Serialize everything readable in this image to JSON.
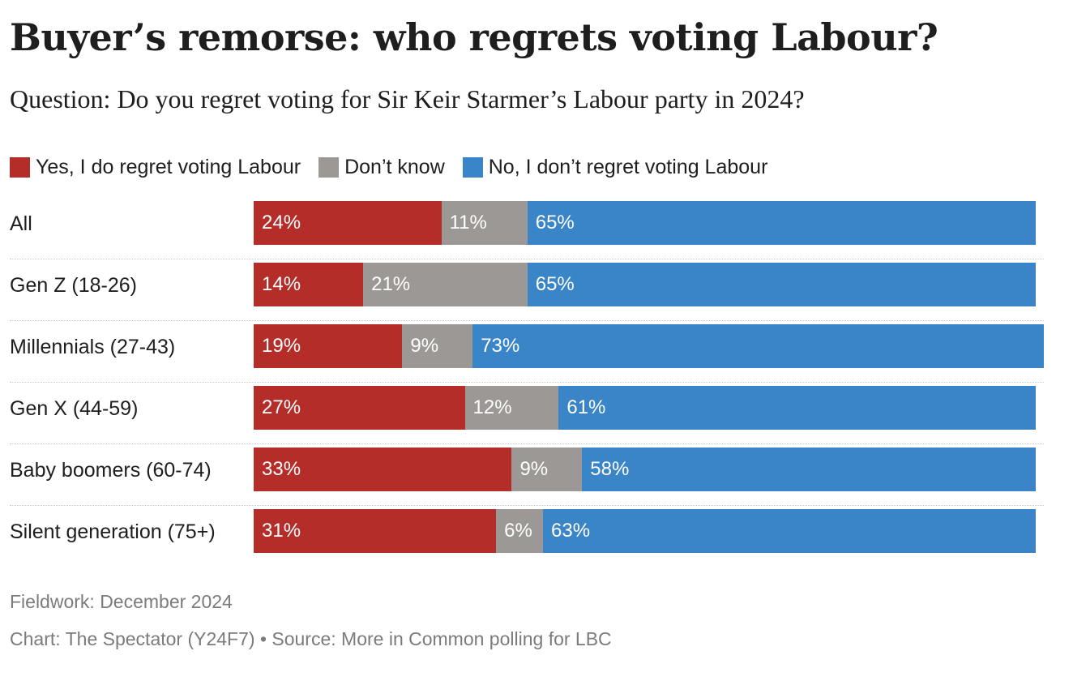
{
  "title": "Buyer’s remorse: who regrets voting Labour?",
  "subtitle": "Question: Do you regret voting for Sir Keir Starmer’s Labour party in 2024?",
  "legend": [
    {
      "label": "Yes, I do regret voting Labour",
      "color": "#b52d29"
    },
    {
      "label": "Don’t know",
      "color": "#9c9896"
    },
    {
      "label": "No, I don’t regret voting Labour",
      "color": "#3a85c8"
    }
  ],
  "chart_data": {
    "type": "bar",
    "orientation": "horizontal",
    "stacked": true,
    "categories": [
      "All",
      "Gen Z (18-26)",
      "Millennials (27-43)",
      "Gen X (44-59)",
      "Baby boomers (60-74)",
      "Silent generation (75+)"
    ],
    "series": [
      {
        "name": "Yes, I do regret voting Labour",
        "color": "#b52d29",
        "values": [
          24,
          14,
          19,
          27,
          33,
          31
        ],
        "labels": [
          "24%",
          "14%",
          "19%",
          "27%",
          "33%",
          "31%"
        ]
      },
      {
        "name": "Don’t know",
        "color": "#9c9896",
        "values": [
          11,
          21,
          9,
          12,
          9,
          6
        ],
        "labels": [
          "11%",
          "21%",
          "9%",
          "12%",
          "9%",
          "6%"
        ]
      },
      {
        "name": "No, I don’t regret voting Labour",
        "color": "#3a85c8",
        "values": [
          65,
          65,
          73,
          61,
          58,
          63
        ],
        "labels": [
          "65%",
          "65%",
          "73%",
          "61%",
          "58%",
          "63%"
        ]
      }
    ],
    "legend_position": "top-left",
    "grid": false
  },
  "footer": {
    "fieldwork": "Fieldwork: December 2024",
    "credit": "Chart: The Spectator (Y24F7) • Source: More in Common polling for LBC"
  }
}
